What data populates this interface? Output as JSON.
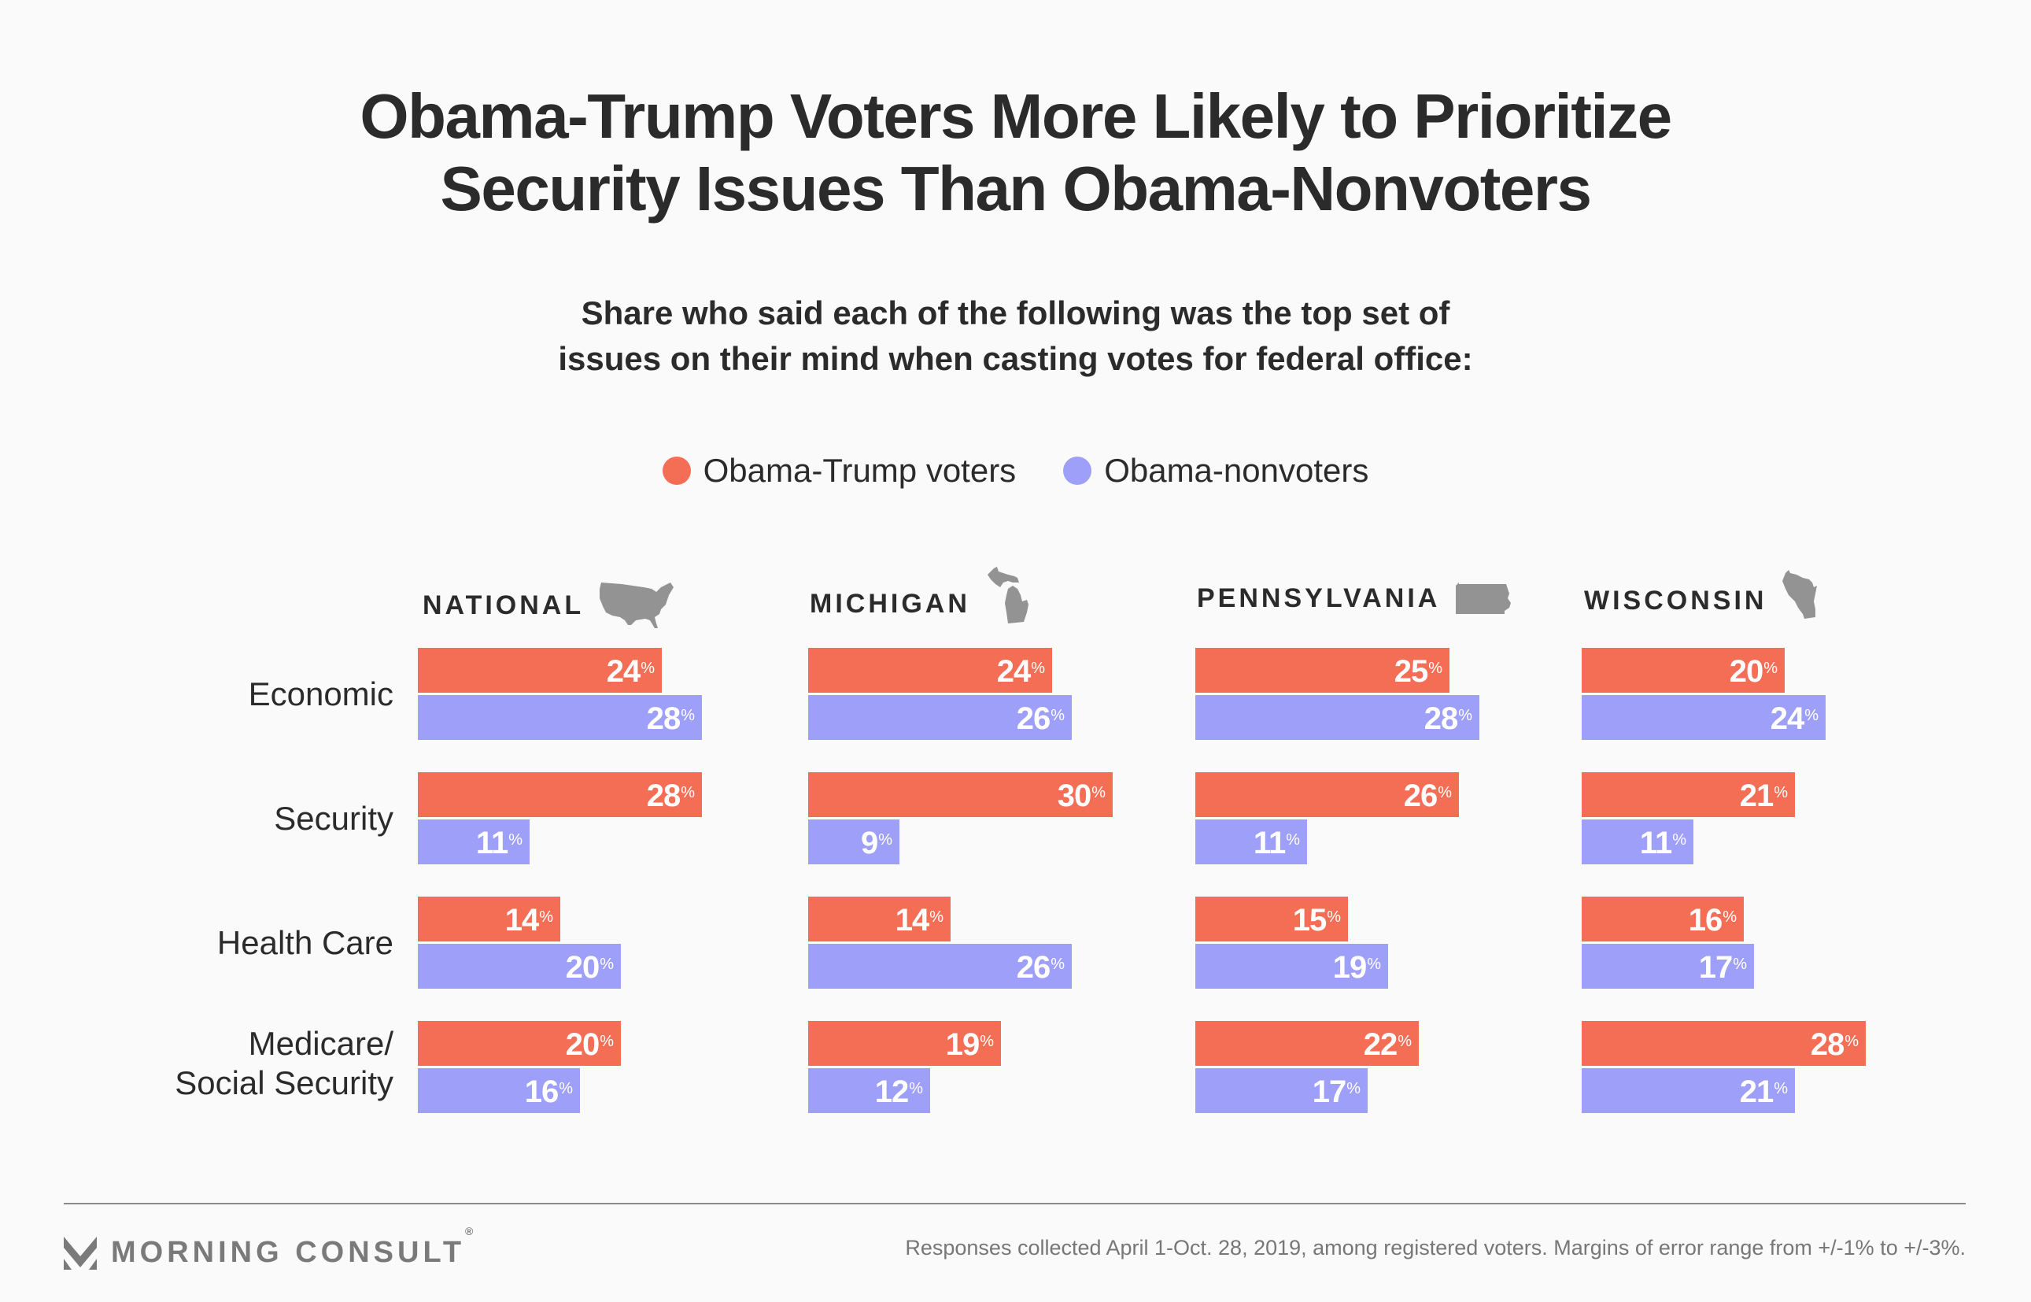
{
  "header": {
    "title_line1": "Obama-Trump Voters More Likely to Prioritize",
    "title_line2": "Security Issues Than Obama-Nonvoters",
    "subtitle_line1": "Share who said each of the following was the top set of",
    "subtitle_line2": "issues on their mind when casting votes for federal office:"
  },
  "legend": [
    {
      "label": "Obama-Trump voters",
      "color": "#F46E55"
    },
    {
      "label": "Obama-nonvoters",
      "color": "#9E9FF8"
    }
  ],
  "footer": {
    "brand": "MORNING CONSULT",
    "registered_mark": "®",
    "note": "Responses collected April 1-Oct. 28, 2019, among registered voters. Margins of error range from +/-1% to +/-3%."
  },
  "chart_data": {
    "type": "bar",
    "orientation": "horizontal",
    "title": "Obama-Trump Voters More Likely to Prioritize Security Issues Than Obama-Nonvoters",
    "subtitle": "Share who said each of the following was the top set of issues on their mind when casting votes for federal office:",
    "unit": "%",
    "xlim": [
      0,
      30
    ],
    "grid": false,
    "legend_position": "top-center",
    "categories": [
      "Economic",
      "Security",
      "Health Care",
      "Medicare/\nSocial Security"
    ],
    "series_names": [
      "Obama-Trump voters",
      "Obama-nonvoters"
    ],
    "series_colors": [
      "#F46E55",
      "#9E9FF8"
    ],
    "panels": [
      {
        "name": "NATIONAL",
        "icon": "usa-map-icon",
        "series": [
          {
            "name": "Obama-Trump voters",
            "values": [
              24,
              28,
              14,
              20
            ]
          },
          {
            "name": "Obama-nonvoters",
            "values": [
              28,
              11,
              20,
              16
            ]
          }
        ]
      },
      {
        "name": "MICHIGAN",
        "icon": "michigan-map-icon",
        "series": [
          {
            "name": "Obama-Trump voters",
            "values": [
              24,
              30,
              14,
              19
            ]
          },
          {
            "name": "Obama-nonvoters",
            "values": [
              26,
              9,
              26,
              12
            ]
          }
        ]
      },
      {
        "name": "PENNSYLVANIA",
        "icon": "pennsylvania-map-icon",
        "series": [
          {
            "name": "Obama-Trump voters",
            "values": [
              25,
              26,
              15,
              22
            ]
          },
          {
            "name": "Obama-nonvoters",
            "values": [
              28,
              11,
              19,
              17
            ]
          }
        ]
      },
      {
        "name": "WISCONSIN",
        "icon": "wisconsin-map-icon",
        "series": [
          {
            "name": "Obama-Trump voters",
            "values": [
              20,
              21,
              16,
              28
            ]
          },
          {
            "name": "Obama-nonvoters",
            "values": [
              24,
              11,
              17,
              21
            ]
          }
        ]
      }
    ]
  }
}
